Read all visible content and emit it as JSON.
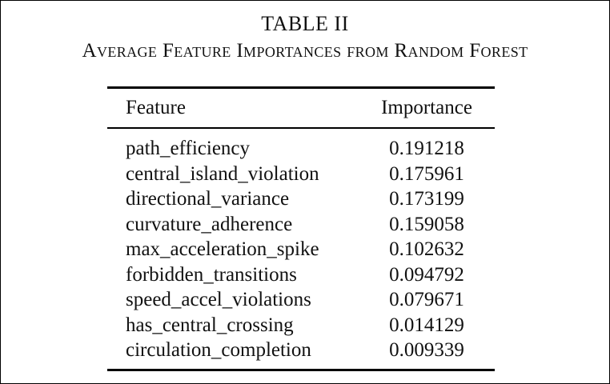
{
  "table": {
    "number": "TABLE II",
    "title": "Average Feature Importances from Random Forest",
    "columns": {
      "feature": "Feature",
      "importance": "Importance"
    },
    "rows": [
      {
        "feature": "path_efficiency",
        "importance": "0.191218"
      },
      {
        "feature": "central_island_violation",
        "importance": "0.175961"
      },
      {
        "feature": "directional_variance",
        "importance": "0.173199"
      },
      {
        "feature": "curvature_adherence",
        "importance": "0.159058"
      },
      {
        "feature": "max_acceleration_spike",
        "importance": "0.102632"
      },
      {
        "feature": "forbidden_transitions",
        "importance": "0.094792"
      },
      {
        "feature": "speed_accel_violations",
        "importance": "0.079671"
      },
      {
        "feature": "has_central_crossing",
        "importance": "0.014129"
      },
      {
        "feature": "circulation_completion",
        "importance": "0.009339"
      }
    ]
  }
}
